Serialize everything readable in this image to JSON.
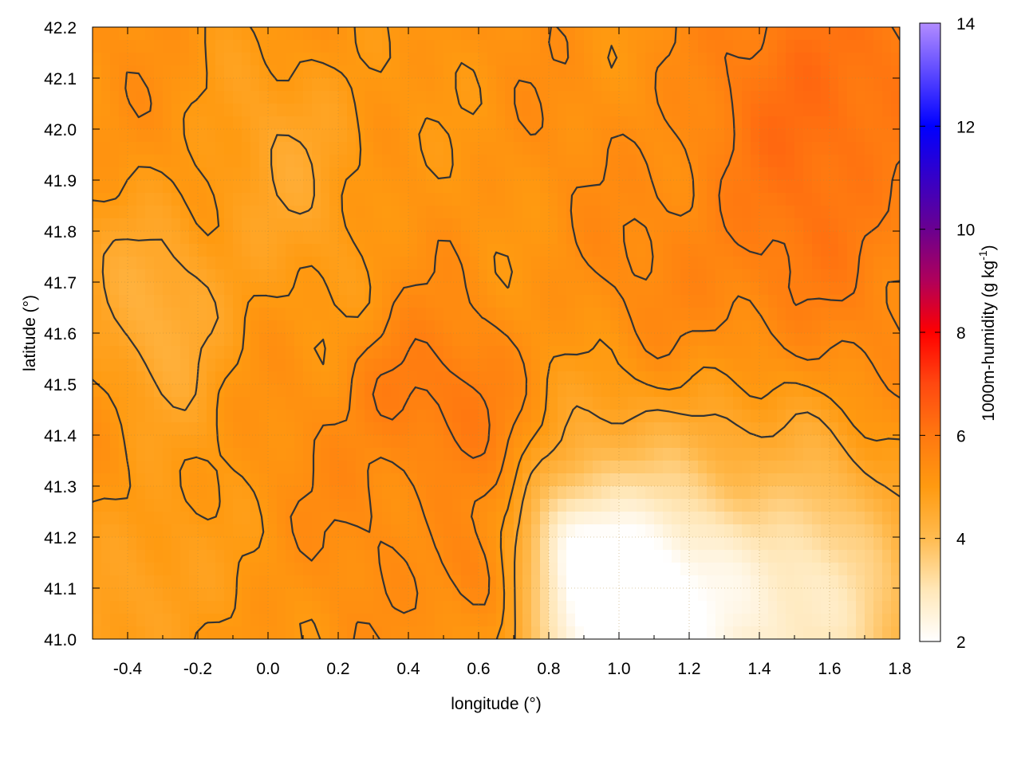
{
  "chart_data": {
    "type": "heatmap",
    "title": "",
    "xlabel": "longitude (°)",
    "ylabel": "latitude (°)",
    "colorbar_label": "1000m-humidity (g kg⁻¹)",
    "colorbar_label_base": "1000m-humidity (g kg",
    "colorbar_label_sup": "-1",
    "colorbar_label_tail": ")",
    "xlim": [
      -0.5,
      1.8
    ],
    "ylim": [
      41.0,
      42.2
    ],
    "clim": [
      2,
      14
    ],
    "grid": true,
    "contours": true,
    "x_ticks": [
      "-0.4",
      "-0.2",
      "0.0",
      "0.2",
      "0.4",
      "0.6",
      "0.8",
      "1.0",
      "1.2",
      "1.4",
      "1.6",
      "1.8"
    ],
    "y_ticks": [
      "41.0",
      "41.1",
      "41.2",
      "41.3",
      "41.4",
      "41.5",
      "41.6",
      "41.7",
      "41.8",
      "41.9",
      "42.0",
      "42.1",
      "42.2"
    ],
    "colorbar_ticks": [
      "2",
      "4",
      "6",
      "8",
      "10",
      "12",
      "14"
    ],
    "colormap": [
      {
        "value": 2,
        "color": "#ffffff"
      },
      {
        "value": 3,
        "color": "#ffe7b8"
      },
      {
        "value": 4,
        "color": "#ffbb50"
      },
      {
        "value": 5,
        "color": "#ff9a10"
      },
      {
        "value": 6,
        "color": "#ff7810"
      },
      {
        "value": 7,
        "color": "#ff4810"
      },
      {
        "value": 8,
        "color": "#ff0000"
      },
      {
        "value": 9,
        "color": "#b0005a"
      },
      {
        "value": 10,
        "color": "#6a0090"
      },
      {
        "value": 12,
        "color": "#0000ff"
      },
      {
        "value": 14,
        "color": "#b28cff"
      }
    ],
    "field_base": 5.2,
    "field_blobs": [
      {
        "x": -0.3,
        "y": 41.65,
        "r": 0.22,
        "a": -0.8
      },
      {
        "x": 0.1,
        "y": 41.95,
        "r": 0.25,
        "a": -0.5
      },
      {
        "x": -0.35,
        "y": 41.1,
        "r": 0.2,
        "a": -0.6
      },
      {
        "x": 0.55,
        "y": 41.45,
        "r": 0.18,
        "a": 0.6
      },
      {
        "x": 0.35,
        "y": 41.5,
        "r": 0.12,
        "a": 0.5
      },
      {
        "x": 1.6,
        "y": 41.95,
        "r": 0.4,
        "a": 0.7
      },
      {
        "x": 1.6,
        "y": 42.15,
        "r": 0.25,
        "a": 0.5
      },
      {
        "x": 1.25,
        "y": 41.6,
        "r": 0.3,
        "a": 0.4
      },
      {
        "x": 0.6,
        "y": 41.12,
        "r": 0.12,
        "a": 0.7
      },
      {
        "x": 1.4,
        "y": 41.3,
        "r": 0.12,
        "a": 0.5
      },
      {
        "x": 1.2,
        "y": 41.1,
        "r": 0.35,
        "a": -2.5
      },
      {
        "x": 0.95,
        "y": 41.05,
        "r": 0.2,
        "a": -2.3
      },
      {
        "x": 1.6,
        "y": 41.05,
        "r": 0.3,
        "a": -1.6
      },
      {
        "x": 0.85,
        "y": 41.2,
        "r": 0.12,
        "a": -1.2
      },
      {
        "x": 0.3,
        "y": 41.3,
        "r": 0.18,
        "a": 0.2
      }
    ],
    "contour_levels": [
      4.6,
      5.0,
      5.4,
      5.8
    ]
  }
}
